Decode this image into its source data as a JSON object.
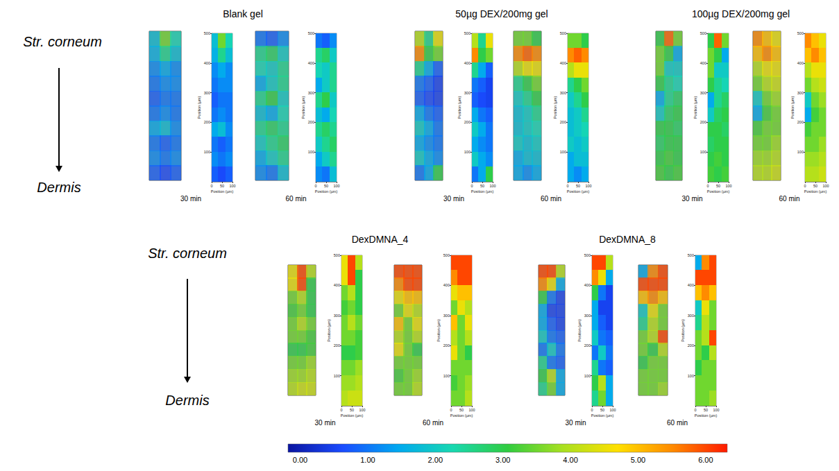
{
  "chart_data": {
    "type": "heatmap",
    "annotations": [
      "Str. corneum",
      "Dermis"
    ],
    "xlabel": "Position (µm)",
    "ylabel": "Position (µm)",
    "xlim": [
      0,
      100
    ],
    "ylim": [
      0,
      500
    ],
    "xticks": [
      0,
      50,
      100
    ],
    "yticks": [
      100,
      200,
      300,
      400,
      500
    ],
    "x_edges": [
      0,
      33.3,
      66.7,
      100
    ],
    "y_edges": [
      500,
      450,
      400,
      350,
      300,
      250,
      200,
      150,
      100,
      50,
      0
    ],
    "colorbar": {
      "range": [
        -0.18,
        6.32
      ],
      "ticks": [
        {
          "value": 0,
          "label": "0.00"
        },
        {
          "value": 1,
          "label": "1.00"
        },
        {
          "value": 2,
          "label": "2.00"
        },
        {
          "value": 3,
          "label": "3.00"
        },
        {
          "value": 4,
          "label": "4.00"
        },
        {
          "value": 5,
          "label": "5.00"
        },
        {
          "value": 6,
          "label": "6.00"
        }
      ]
    },
    "panels": [
      {
        "title": "Blank gel",
        "maps": [
          {
            "time": "30 min",
            "cells": [
              [
                1.8,
                3.5,
                2.2
              ],
              [
                1.6,
                2.5,
                1.8
              ],
              [
                1.2,
                1.5,
                1.2
              ],
              [
                1.0,
                1.2,
                1.2
              ],
              [
                0.8,
                1.0,
                1.0
              ],
              [
                1.0,
                1.2,
                1.0
              ],
              [
                1.5,
                1.8,
                1.2
              ],
              [
                1.0,
                0.8,
                1.0
              ],
              [
                1.2,
                1.0,
                1.2
              ],
              [
                0.8,
                0.6,
                0.8
              ]
            ]
          },
          {
            "time": "60 min",
            "cells": [
              [
                1.0,
                0.8,
                1.2
              ],
              [
                2.5,
                2.8,
                2.0
              ],
              [
                2.2,
                2.0,
                2.5
              ],
              [
                1.5,
                2.0,
                2.5
              ],
              [
                2.5,
                3.0,
                2.0
              ],
              [
                1.8,
                1.5,
                2.2
              ],
              [
                2.5,
                2.8,
                2.5
              ],
              [
                2.0,
                2.5,
                2.8
              ],
              [
                1.5,
                2.0,
                2.5
              ],
              [
                1.2,
                1.0,
                1.8
              ]
            ]
          }
        ]
      },
      {
        "title": "50µg DEX/200mg gel",
        "maps": [
          {
            "time": "30 min",
            "cells": [
              [
                4.0,
                2.5,
                4.5
              ],
              [
                5.5,
                3.0,
                3.5
              ],
              [
                2.5,
                1.5,
                0.8
              ],
              [
                1.0,
                0.8,
                0.5
              ],
              [
                0.8,
                0.6,
                0.5
              ],
              [
                1.5,
                1.0,
                0.8
              ],
              [
                2.0,
                1.5,
                1.0
              ],
              [
                1.5,
                1.2,
                1.0
              ],
              [
                2.0,
                1.5,
                1.2
              ],
              [
                1.0,
                1.5,
                3.0
              ]
            ]
          },
          {
            "time": "60 min",
            "cells": [
              [
                3.5,
                3.5,
                3.0
              ],
              [
                5.5,
                5.8,
                5.5
              ],
              [
                4.0,
                4.5,
                4.5
              ],
              [
                2.5,
                3.0,
                3.5
              ],
              [
                2.0,
                2.5,
                3.0
              ],
              [
                1.8,
                2.0,
                2.5
              ],
              [
                1.8,
                2.0,
                2.2
              ],
              [
                2.0,
                1.8,
                2.0
              ],
              [
                1.5,
                1.8,
                1.8
              ],
              [
                1.5,
                1.2,
                1.5
              ]
            ]
          }
        ]
      },
      {
        "title": "100µg DEX/200mg gel",
        "maps": [
          {
            "time": "30 min",
            "cells": [
              [
                3.0,
                5.8,
                3.5
              ],
              [
                3.5,
                3.0,
                1.5
              ],
              [
                3.5,
                2.0,
                2.0
              ],
              [
                3.0,
                2.5,
                2.2
              ],
              [
                1.5,
                2.5,
                2.8
              ],
              [
                2.0,
                2.8,
                3.0
              ],
              [
                3.0,
                3.0,
                2.8
              ],
              [
                2.8,
                3.0,
                3.0
              ],
              [
                3.0,
                3.2,
                3.0
              ],
              [
                3.2,
                3.0,
                3.2
              ]
            ]
          },
          {
            "time": "60 min",
            "cells": [
              [
                5.5,
                5.0,
                4.5
              ],
              [
                5.0,
                5.5,
                5.0
              ],
              [
                4.0,
                4.5,
                4.5
              ],
              [
                3.5,
                4.0,
                4.2
              ],
              [
                2.0,
                3.5,
                3.8
              ],
              [
                1.5,
                3.2,
                3.5
              ],
              [
                3.2,
                3.5,
                3.5
              ],
              [
                3.5,
                3.5,
                3.8
              ],
              [
                3.8,
                3.8,
                4.0
              ],
              [
                4.0,
                4.0,
                4.2
              ]
            ]
          }
        ]
      },
      {
        "title": "DexDMNA_4",
        "maps": [
          {
            "time": "30 min",
            "cells": [
              [
                4.5,
                6.0,
                4.0
              ],
              [
                4.5,
                6.0,
                3.0
              ],
              [
                3.5,
                4.0,
                3.0
              ],
              [
                3.2,
                3.5,
                3.0
              ],
              [
                3.5,
                4.0,
                3.5
              ],
              [
                3.5,
                3.5,
                3.2
              ],
              [
                3.0,
                3.0,
                3.2
              ],
              [
                3.5,
                3.5,
                3.8
              ],
              [
                3.8,
                3.8,
                4.0
              ],
              [
                4.0,
                4.2,
                4.2
              ]
            ]
          },
          {
            "time": "60 min",
            "cells": [
              [
                6.0,
                6.0,
                6.0
              ],
              [
                5.5,
                6.0,
                6.0
              ],
              [
                4.5,
                5.0,
                5.0
              ],
              [
                3.5,
                4.5,
                4.0
              ],
              [
                5.0,
                3.5,
                4.5
              ],
              [
                4.0,
                3.5,
                4.0
              ],
              [
                4.5,
                3.5,
                3.0
              ],
              [
                3.5,
                3.5,
                3.5
              ],
              [
                3.2,
                3.5,
                3.8
              ],
              [
                3.5,
                3.5,
                4.0
              ]
            ]
          }
        ]
      },
      {
        "title": "DexDMNA_8",
        "maps": [
          {
            "time": "30 min",
            "cells": [
              [
                6.0,
                6.0,
                4.0
              ],
              [
                5.5,
                4.5,
                1.5
              ],
              [
                3.0,
                1.0,
                0.5
              ],
              [
                1.5,
                0.5,
                0.5
              ],
              [
                1.5,
                0.8,
                0.5
              ],
              [
                2.0,
                1.0,
                0.8
              ],
              [
                1.0,
                2.0,
                1.0
              ],
              [
                2.5,
                1.0,
                0.8
              ],
              [
                3.0,
                4.0,
                1.5
              ],
              [
                2.5,
                3.5,
                1.5
              ]
            ]
          },
          {
            "time": "60 min",
            "cells": [
              [
                1.5,
                5.5,
                6.0
              ],
              [
                6.0,
                6.0,
                6.0
              ],
              [
                5.0,
                5.5,
                5.0
              ],
              [
                2.0,
                4.5,
                3.5
              ],
              [
                2.5,
                4.0,
                3.5
              ],
              [
                3.5,
                4.0,
                6.0
              ],
              [
                3.5,
                3.0,
                4.0
              ],
              [
                3.0,
                3.5,
                3.5
              ],
              [
                3.5,
                3.5,
                3.5
              ],
              [
                3.5,
                3.5,
                3.8
              ]
            ]
          }
        ]
      }
    ]
  }
}
